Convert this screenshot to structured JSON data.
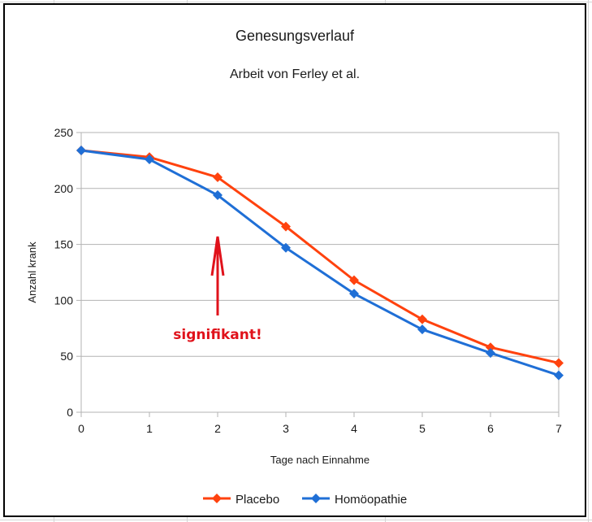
{
  "chart_data": {
    "type": "line",
    "title": "Genesungsverlauf",
    "subtitle": "Arbeit von Ferley et al.",
    "xlabel": "Tage nach Einnahme",
    "ylabel": "Anzahl krank",
    "x": [
      0,
      1,
      2,
      3,
      4,
      5,
      6,
      7
    ],
    "xlim": [
      0,
      7
    ],
    "ylim": [
      0,
      250
    ],
    "yticks": [
      0,
      50,
      100,
      150,
      200,
      250
    ],
    "grid": "horizontal",
    "legend_position": "bottom",
    "series": [
      {
        "name": "Placebo",
        "color": "#ff420e",
        "marker": "diamond",
        "values": [
          234,
          228,
          210,
          166,
          118,
          83,
          58,
          44
        ]
      },
      {
        "name": "Homöopathie",
        "color": "#1f6fd6",
        "marker": "diamond",
        "values": [
          234,
          226,
          194,
          147,
          106,
          74,
          53,
          33
        ]
      }
    ],
    "annotations": [
      {
        "text": "signifikant!",
        "x": 2,
        "arrow_to_y": 157,
        "color": "#e0121b"
      }
    ]
  }
}
